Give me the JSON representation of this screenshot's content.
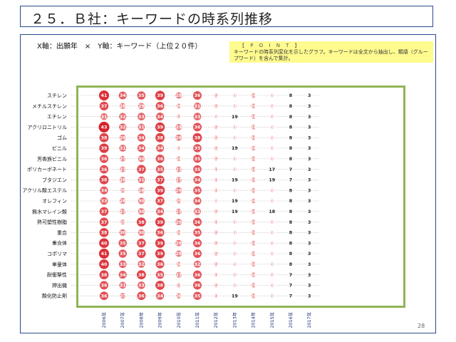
{
  "page": {
    "title": "２５．Ｂ社：キーワードの時系列推移",
    "axis_description": "X軸：出願年　×　Y軸：キーワード（上位２０件）",
    "point_title": "【 P O I N T 】",
    "point_text": "キーワードの時系列変化を示したグラフ。キーワードは全文から抽出し、類語（グループワード）を含んで集計。",
    "page_number": "28"
  },
  "colors": {
    "frame": "#2b4a8a",
    "chart_border": "#8fb556",
    "point_bg": "#fffb8f",
    "bubble_dark": "#d8232a",
    "bubble_light": "#f6b7ba"
  },
  "chart_data": {
    "type": "bubble",
    "x": [
      "2006年",
      "2007年",
      "2008年",
      "2009年",
      "2010年",
      "2011年",
      "2012年",
      "2013年",
      "2014年",
      "2015年",
      "2016年",
      "2017年"
    ],
    "y": [
      "スチレン",
      "メチルスチレン",
      "エチレン",
      "アクリロニトリル",
      "ゴム",
      "ビニル",
      "芳香族ビニル",
      "ポリカーボネート",
      "ブタジエン",
      "アクリル酸エステル",
      "オレフィン",
      "無水マレイン酸",
      "熱可塑性樹脂",
      "重合",
      "重合体",
      "コポリマ",
      "単量体",
      "耐衝撃性",
      "押出機",
      "酸化防止剤"
    ],
    "values": [
      [
        41,
        34,
        35,
        39,
        29,
        36,
        22,
        20,
        24,
        20,
        8,
        3
      ],
      [
        37,
        28,
        29,
        36,
        24,
        31,
        22,
        20,
        24,
        20,
        8,
        3
      ],
      [
        31,
        32,
        33,
        34,
        22,
        33,
        20,
        19,
        24,
        20,
        8,
        3
      ],
      [
        43,
        32,
        31,
        39,
        29,
        36,
        22,
        20,
        24,
        20,
        8,
        3
      ],
      [
        38,
        29,
        34,
        38,
        29,
        38,
        22,
        20,
        24,
        20,
        8,
        3
      ],
      [
        39,
        31,
        34,
        34,
        21,
        35,
        22,
        19,
        24,
        20,
        8,
        3
      ],
      [
        36,
        27,
        30,
        36,
        24,
        35,
        22,
        20,
        24,
        20,
        8,
        3
      ],
      [
        36,
        27,
        37,
        35,
        27,
        35,
        21,
        20,
        24,
        17,
        7,
        3
      ],
      [
        38,
        28,
        31,
        37,
        27,
        34,
        21,
        19,
        24,
        19,
        7,
        3
      ],
      [
        34,
        25,
        28,
        39,
        29,
        35,
        21,
        20,
        24,
        20,
        8,
        3
      ],
      [
        33,
        28,
        30,
        37,
        25,
        34,
        20,
        19,
        24,
        20,
        8,
        3
      ],
      [
        37,
        27,
        30,
        34,
        27,
        31,
        22,
        19,
        24,
        18,
        8,
        3
      ],
      [
        37,
        25,
        38,
        39,
        29,
        36,
        21,
        20,
        24,
        20,
        8,
        3
      ],
      [
        38,
        30,
        30,
        36,
        24,
        35,
        22,
        20,
        24,
        20,
        8,
        3
      ],
      [
        40,
        35,
        37,
        39,
        29,
        36,
        22,
        20,
        24,
        20,
        8,
        3
      ],
      [
        41,
        35,
        37,
        39,
        29,
        36,
        22,
        20,
        24,
        20,
        8,
        3
      ],
      [
        40,
        33,
        32,
        36,
        24,
        32,
        22,
        20,
        24,
        20,
        8,
        3
      ],
      [
        38,
        34,
        38,
        35,
        27,
        36,
        21,
        20,
        24,
        20,
        7,
        3
      ],
      [
        36,
        31,
        33,
        38,
        23,
        36,
        22,
        20,
        24,
        20,
        7,
        3
      ],
      [
        36,
        27,
        36,
        34,
        26,
        35,
        21,
        19,
        24,
        20,
        7,
        3
      ]
    ]
  }
}
